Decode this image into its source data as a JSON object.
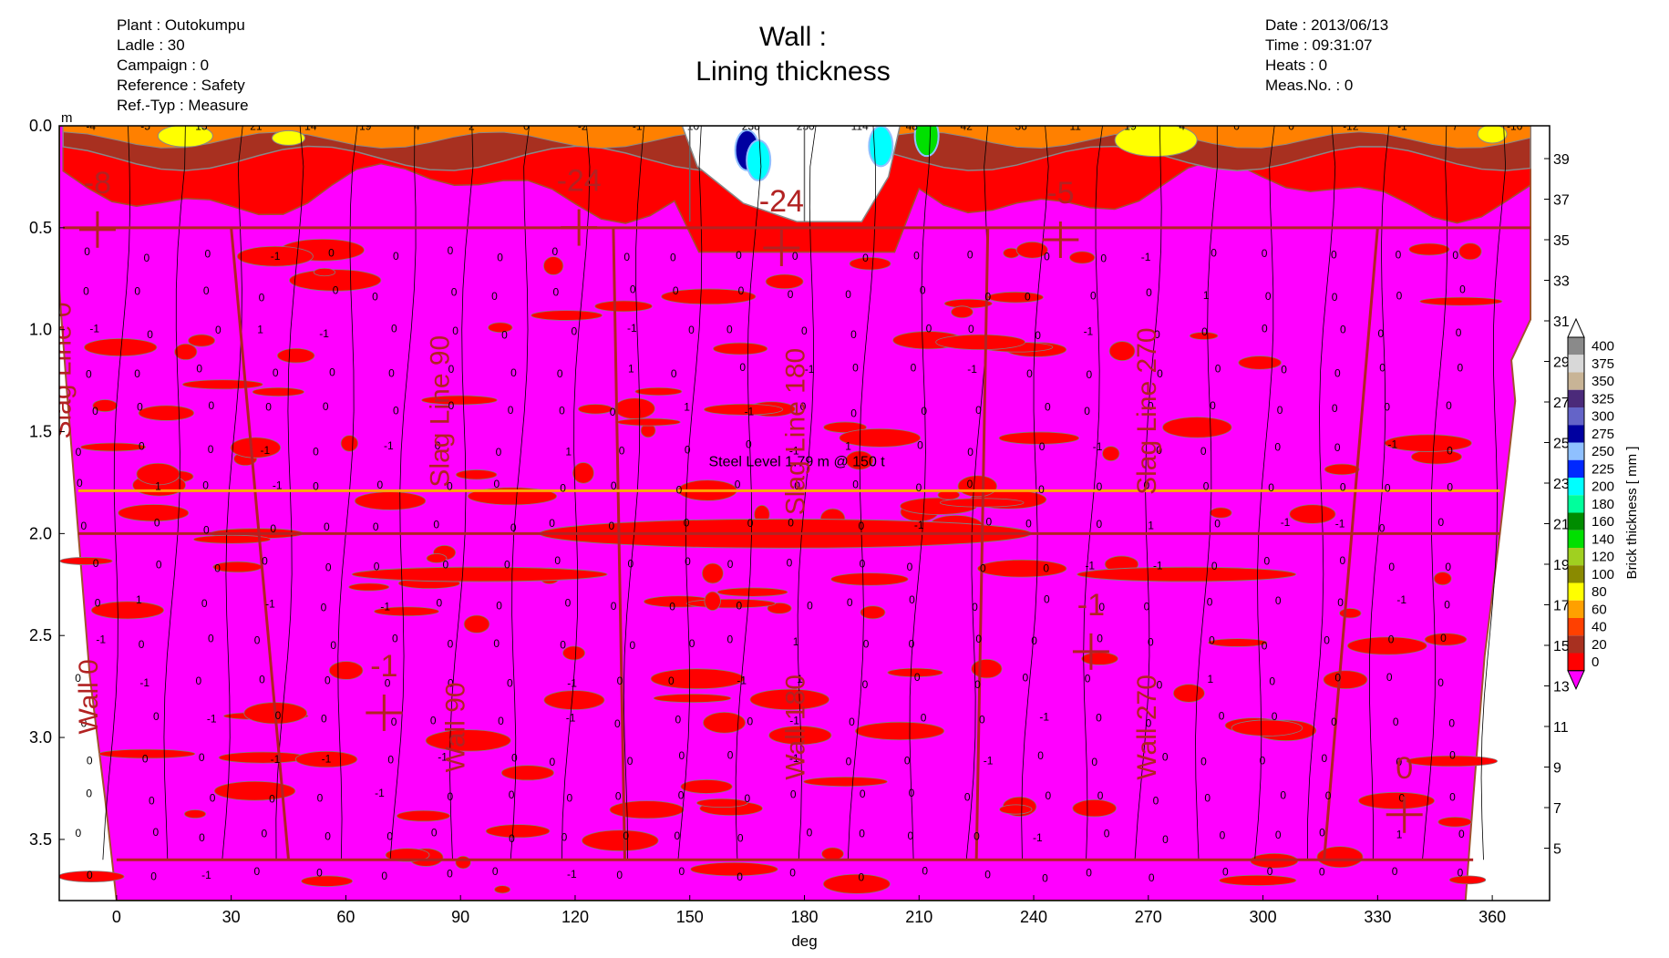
{
  "header_left": [
    {
      "label": "Plant",
      "value": "Outokumpu"
    },
    {
      "label": "Ladle",
      "value": "30"
    },
    {
      "label": "Campaign",
      "value": "0"
    },
    {
      "label": "Reference",
      "value": "Safety"
    },
    {
      "label": "Ref.-Typ",
      "value": "Measure"
    }
  ],
  "header_right": [
    {
      "label": "Date",
      "value": "2013/06/13"
    },
    {
      "label": "Time",
      "value": "09:31:07"
    },
    {
      "label": "Heats",
      "value": "0"
    },
    {
      "label": "Meas.No.",
      "value": "0"
    }
  ],
  "header_lines": {
    "plant": "Plant : Outokumpu",
    "ladle": "Ladle : 30",
    "campaign": "Campaign : 0",
    "reference": "Reference : Safety",
    "reftyp": "Ref.-Typ : Measure",
    "date": "Date : 2013/06/13",
    "time": "Time : 09:31:07",
    "heats": "Heats : 0",
    "measno": "Meas.No. : 0"
  },
  "title": {
    "line1": "Wall :",
    "line2": "Lining thickness"
  },
  "chart_data": {
    "type": "heatmap",
    "title": "Wall : Lining thickness",
    "xlabel": "deg",
    "ylabel_unit": "m",
    "xlim": [
      -15,
      375
    ],
    "ylim": [
      3.8,
      0.0
    ],
    "x_ticks": [
      0,
      30,
      60,
      90,
      120,
      150,
      180,
      210,
      240,
      270,
      300,
      330,
      360
    ],
    "y_ticks": [
      0.0,
      0.5,
      1.0,
      1.5,
      2.0,
      2.5,
      3.0,
      3.5
    ],
    "y_tick_labels": [
      "0.0",
      "0.5",
      "1.0",
      "1.5",
      "2.0",
      "2.5",
      "3.0",
      "3.5"
    ],
    "right_axis_labels": [
      "39",
      "37",
      "35",
      "33",
      "31",
      "29",
      "27",
      "25",
      "23",
      "21",
      "19",
      "17",
      "15",
      "13",
      "11",
      "9",
      "7",
      "5"
    ],
    "colorbar": {
      "label": "Brick thickness [ mm ]",
      "levels": [
        "400",
        "375",
        "350",
        "325",
        "300",
        "275",
        "250",
        "225",
        "200",
        "180",
        "160",
        "140",
        "120",
        "100",
        "80",
        "60",
        "40",
        "20",
        "0"
      ],
      "colors": [
        "#8a8a8a",
        "#d8d8d8",
        "#c8b496",
        "#4b2a7a",
        "#6464c8",
        "#0000a0",
        "#8fc0ff",
        "#0028ff",
        "#00ffff",
        "#00ff9c",
        "#008c00",
        "#00e000",
        "#a0d020",
        "#8a8a00",
        "#ffff00",
        "#ffa000",
        "#ff4000",
        "#a83020",
        "#ff0000",
        "#ff00ff"
      ]
    },
    "annotations": [
      {
        "text": "Steel Level 1.79 m @ 150 t",
        "x": 178,
        "y": 1.67
      },
      {
        "text": "Slag Line 0",
        "x": -12,
        "y": 1.2
      },
      {
        "text": "Slag Line 90",
        "x": 87,
        "y": 1.4
      },
      {
        "text": "Slag Line 180",
        "x": 180,
        "y": 1.5
      },
      {
        "text": "Slag Line 270",
        "x": 272,
        "y": 1.4
      },
      {
        "text": "Wall 0",
        "x": -5,
        "y": 2.8
      },
      {
        "text": "Wall 90",
        "x": 91,
        "y": 2.95
      },
      {
        "text": "Wall 180",
        "x": 180,
        "y": 2.95
      },
      {
        "text": "Wall 270",
        "x": 272,
        "y": 2.95
      }
    ],
    "steel_level_m": 1.79,
    "zone_boundaries_m": [
      0.5,
      2.0,
      3.6
    ],
    "zone_values": [
      {
        "text": "-8",
        "x": -5,
        "y": 0.33
      },
      {
        "text": "-24",
        "x": 121,
        "y": 0.32
      },
      {
        "text": "-24",
        "x": 174,
        "y": 0.42
      },
      {
        "text": "-5",
        "x": 247,
        "y": 0.38
      },
      {
        "text": "-1",
        "x": 70,
        "y": 2.7
      },
      {
        "text": "-1",
        "x": 255,
        "y": 2.4
      },
      {
        "text": "0",
        "x": 337,
        "y": 3.2
      }
    ],
    "top_row_values": [
      "-4",
      "-5",
      "15",
      "21",
      "14",
      "19",
      "4",
      "2",
      "0",
      "-2",
      "-1",
      "10",
      "238",
      "250",
      "114",
      "48",
      "42",
      "36",
      "11",
      "19",
      "4",
      "0",
      "0",
      "-12",
      "-1",
      "7",
      "-10"
    ]
  }
}
